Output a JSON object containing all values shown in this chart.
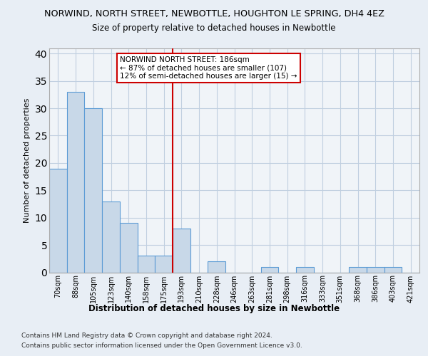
{
  "title": "NORWIND, NORTH STREET, NEWBOTTLE, HOUGHTON LE SPRING, DH4 4EZ",
  "subtitle": "Size of property relative to detached houses in Newbottle",
  "xlabel": "Distribution of detached houses by size in Newbottle",
  "ylabel": "Number of detached properties",
  "categories": [
    "70sqm",
    "88sqm",
    "105sqm",
    "123sqm",
    "140sqm",
    "158sqm",
    "175sqm",
    "193sqm",
    "210sqm",
    "228sqm",
    "246sqm",
    "263sqm",
    "281sqm",
    "298sqm",
    "316sqm",
    "333sqm",
    "351sqm",
    "368sqm",
    "386sqm",
    "403sqm",
    "421sqm"
  ],
  "values": [
    19,
    33,
    30,
    13,
    9,
    3,
    3,
    8,
    0,
    2,
    0,
    0,
    1,
    0,
    1,
    0,
    0,
    1,
    1,
    1,
    0
  ],
  "bar_color": "#c8d8e8",
  "bar_edge_color": "#5b9bd5",
  "vline_x": 6.5,
  "vline_color": "#cc0000",
  "annotation_lines": [
    "NORWIND NORTH STREET: 186sqm",
    "← 87% of detached houses are smaller (107)",
    "12% of semi-detached houses are larger (15) →"
  ],
  "annotation_box_edge": "#cc0000",
  "ylim": [
    0,
    41
  ],
  "yticks": [
    0,
    5,
    10,
    15,
    20,
    25,
    30,
    35,
    40
  ],
  "footer_line1": "Contains HM Land Registry data © Crown copyright and database right 2024.",
  "footer_line2": "Contains public sector information licensed under the Open Government Licence v3.0.",
  "bg_color": "#e8eef5",
  "plot_bg_color": "#f0f4f8",
  "grid_color": "#c0cfe0"
}
